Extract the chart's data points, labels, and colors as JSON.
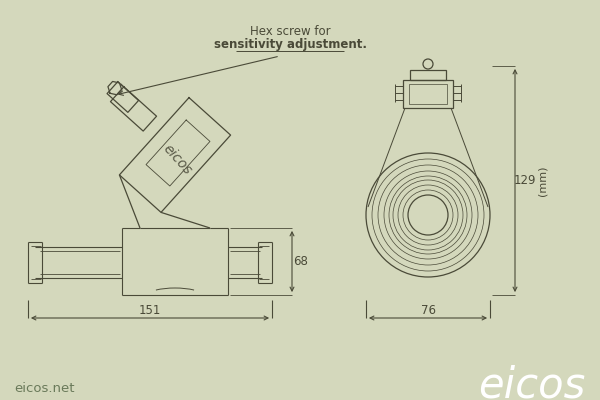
{
  "bg_color": "#d4d8bc",
  "line_color": "#4a4a38",
  "dim_color": "#4a4a38",
  "title_normal": "Hex screw for",
  "title_bold": "sensitivity adjustment.",
  "dim_151": "151",
  "dim_68": "68",
  "dim_76": "76",
  "dim_129": "129",
  "dim_mm": "(mm)",
  "website": "eicos.net",
  "brand": "eicos",
  "brand_color": "#ffffff",
  "website_color": "#6a7a5a",
  "eicos_label_color": "#5a5a48",
  "figsize": [
    6.0,
    4.0
  ],
  "dpi": 100
}
